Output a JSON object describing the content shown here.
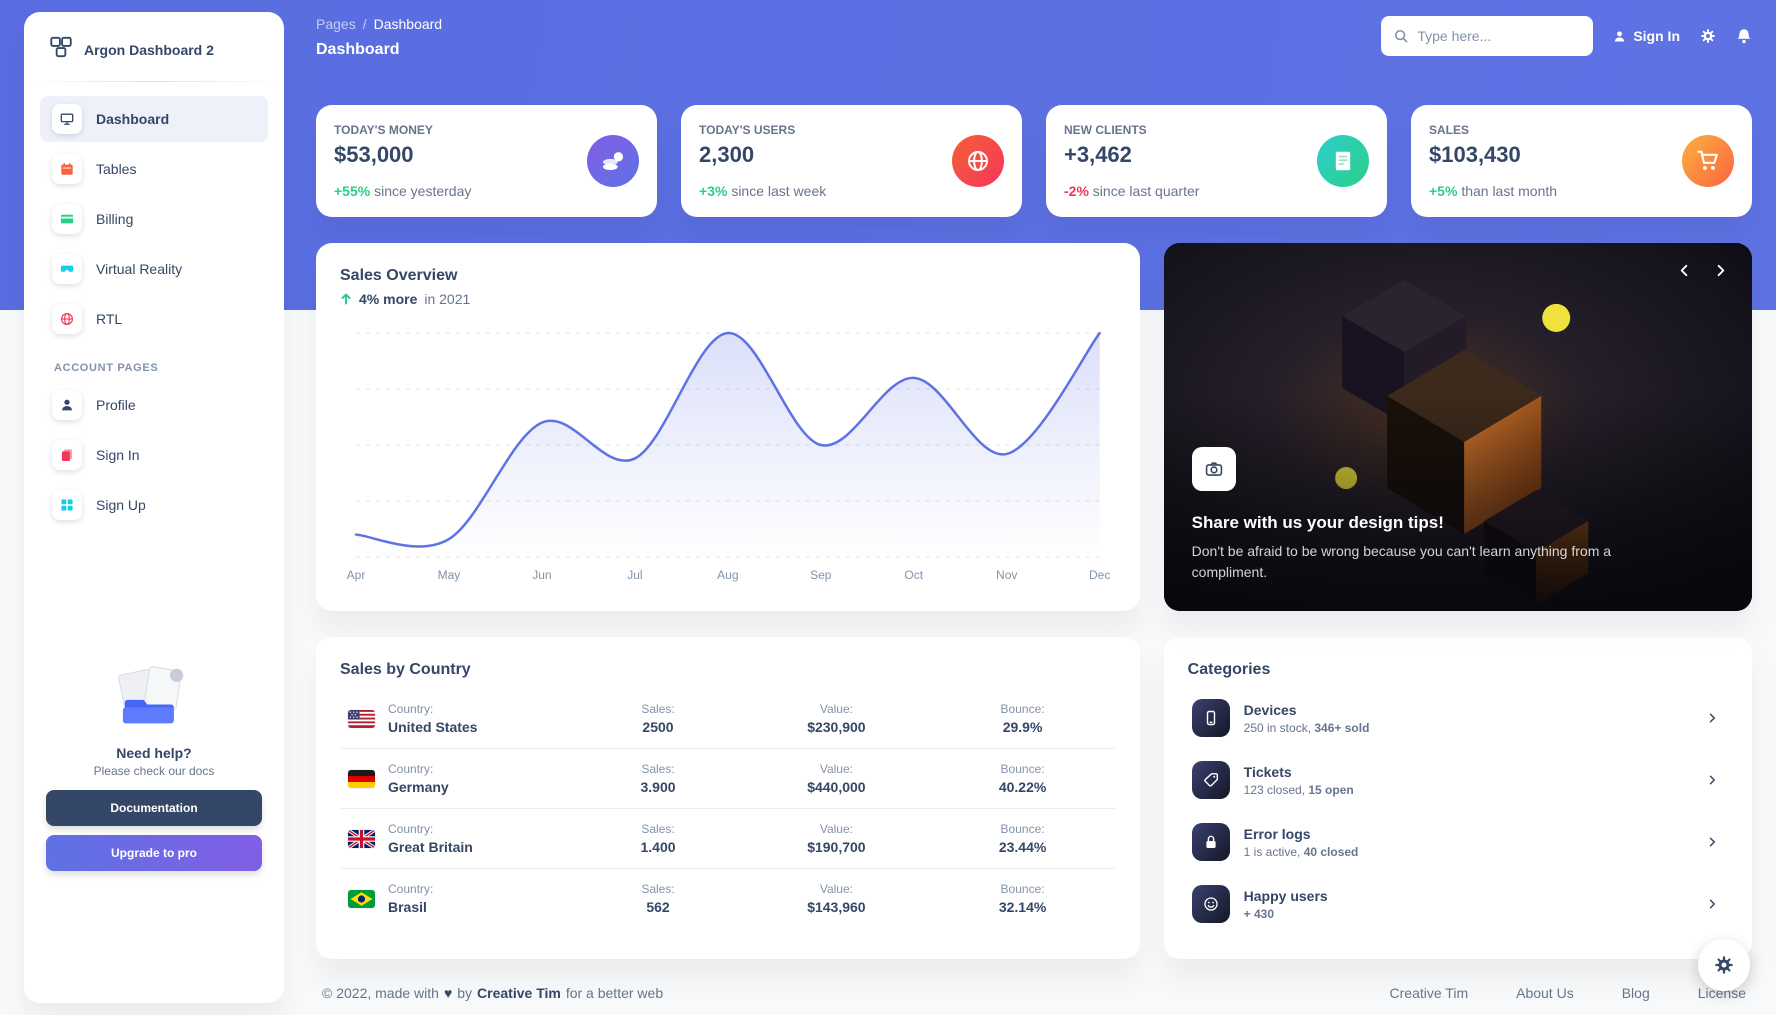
{
  "colors": {
    "primary": "#5e72e4",
    "success": "#2dce89",
    "danger": "#f5365c",
    "warning": "#fb6340",
    "info": "#11cdef",
    "dark": "#344767",
    "text_secondary": "#67748e",
    "hero": "#5e72e4"
  },
  "sidebar": {
    "brand": "Argon Dashboard 2",
    "nav": [
      {
        "label": "Dashboard"
      },
      {
        "label": "Tables"
      },
      {
        "label": "Billing"
      },
      {
        "label": "Virtual Reality"
      },
      {
        "label": "RTL"
      }
    ],
    "section": "ACCOUNT PAGES",
    "account_nav": [
      {
        "label": "Profile"
      },
      {
        "label": "Sign In"
      },
      {
        "label": "Sign Up"
      }
    ],
    "help_title": "Need help?",
    "help_subtitle": "Please check our docs",
    "documentation_button": "Documentation",
    "upgrade_button": "Upgrade to pro"
  },
  "topnav": {
    "breadcrumb_root": "Pages",
    "breadcrumb_separator": "/",
    "breadcrumb_current": "Dashboard",
    "page_title": "Dashboard",
    "search_placeholder": "Type here...",
    "sign_in_label": "Sign In"
  },
  "stats": [
    {
      "label": "TODAY'S MONEY",
      "value": "$53,000",
      "delta": "+55%",
      "delta_text": "since yesterday"
    },
    {
      "label": "TODAY'S USERS",
      "value": "2,300",
      "delta": "+3%",
      "delta_text": "since last week"
    },
    {
      "label": "NEW CLIENTS",
      "value": "+3,462",
      "delta": "-2%",
      "delta_text": "since last quarter"
    },
    {
      "label": "SALES",
      "value": "$103,430",
      "delta": "+5%",
      "delta_text": "than last month"
    }
  ],
  "sales_overview": {
    "title": "Sales Overview",
    "delta_bold": "4% more",
    "delta_rest": "in 2021",
    "chart_data": {
      "type": "area",
      "x": [
        "Apr",
        "May",
        "Jun",
        "Jul",
        "Aug",
        "Sep",
        "Oct",
        "Nov",
        "Dec"
      ],
      "series": [
        {
          "name": "Sales",
          "values": [
            50,
            40,
            300,
            220,
            500,
            250,
            400,
            230,
            500
          ]
        }
      ],
      "ylim": [
        0,
        500
      ],
      "grid": "dashed-horizontal",
      "line_color": "#5e72e4",
      "legend": "none",
      "title": "Sales Overview"
    }
  },
  "promo_card": {
    "title": "Share with us your design tips!",
    "body": "Don't be afraid to be wrong because you can't learn anything from a compliment."
  },
  "sales_by_country": {
    "title": "Sales by Country",
    "col_labels": {
      "country": "Country:",
      "sales": "Sales:",
      "value": "Value:",
      "bounce": "Bounce:"
    },
    "rows": [
      {
        "flag": "us",
        "country": "United States",
        "sales": "2500",
        "value": "$230,900",
        "bounce": "29.9%"
      },
      {
        "flag": "de",
        "country": "Germany",
        "sales": "3.900",
        "value": "$440,000",
        "bounce": "40.22%"
      },
      {
        "flag": "gb",
        "country": "Great Britain",
        "sales": "1.400",
        "value": "$190,700",
        "bounce": "23.44%"
      },
      {
        "flag": "br",
        "country": "Brasil",
        "sales": "562",
        "value": "$143,960",
        "bounce": "32.14%"
      }
    ]
  },
  "categories": {
    "title": "Categories",
    "items": [
      {
        "title": "Devices",
        "desc": "250 in stock, ",
        "desc_bold": "346+ sold",
        "icon": "mobile-icon"
      },
      {
        "title": "Tickets",
        "desc": "123 closed, ",
        "desc_bold": "15 open",
        "icon": "tag-icon"
      },
      {
        "title": "Error logs",
        "desc": "1 is active, ",
        "desc_bold": "40 closed",
        "icon": "lock-icon"
      },
      {
        "title": "Happy users",
        "desc": "",
        "desc_bold": "+ 430",
        "icon": "smile-icon"
      }
    ]
  },
  "footer": {
    "copyright_prefix": "© 2022, made with",
    "copyright_by": "by",
    "brand": "Creative Tim",
    "copyright_suffix": "for a better web",
    "links": [
      "Creative Tim",
      "About Us",
      "Blog",
      "License"
    ]
  }
}
